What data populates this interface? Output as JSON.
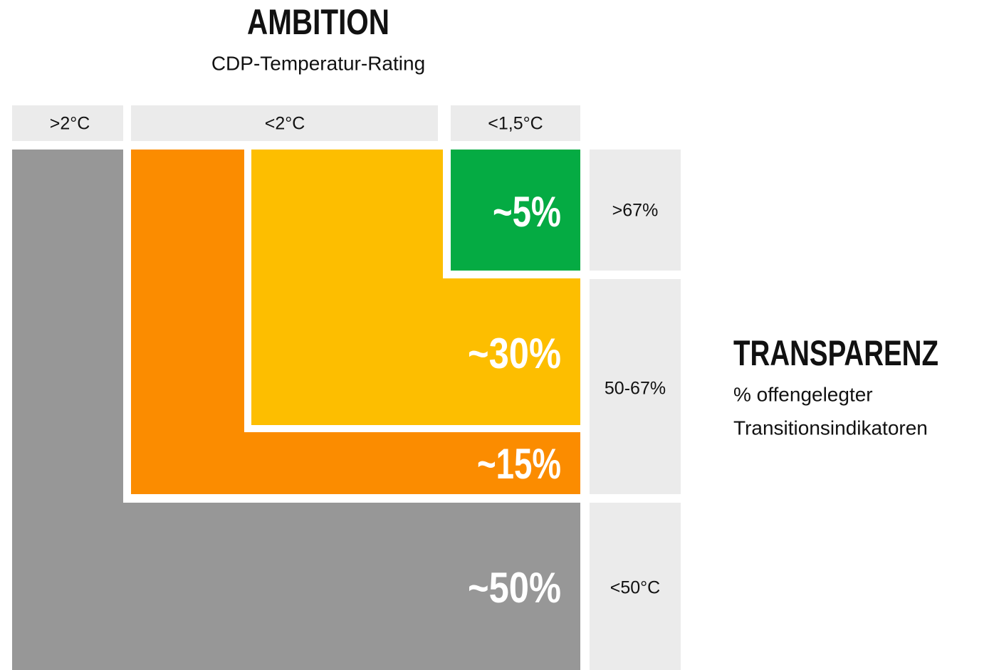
{
  "title": "AMBITION",
  "subtitle": "CDP-Temperatur-Rating",
  "columns": [
    ">2°C",
    "<2°C",
    "<1,5°C"
  ],
  "rows": [
    ">67%",
    "50-67%",
    "<50°C"
  ],
  "segments": [
    "~5%",
    "~30%",
    "~15%",
    "~50%"
  ],
  "side": {
    "title": "TRANSPARENZ",
    "lines": [
      "% offengelegter",
      "Transitionsindikatoren"
    ]
  }
}
